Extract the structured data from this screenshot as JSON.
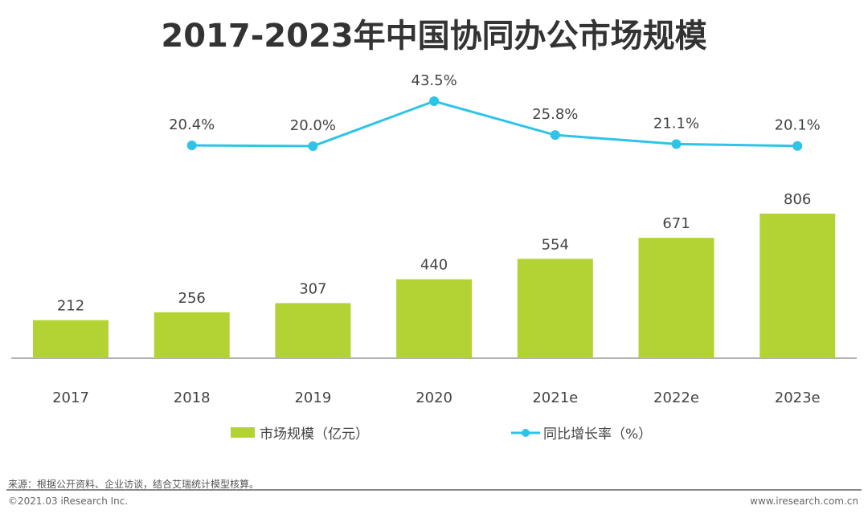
{
  "chart_data": {
    "title": "2017-2023年中国协同办公市场规模",
    "type": "bar+line",
    "categories": [
      "2017",
      "2018",
      "2019",
      "2020",
      "2021e",
      "2022e",
      "2023e"
    ],
    "series": [
      {
        "name": "市场规模（亿元）",
        "type": "bar",
        "color": "#b3d334",
        "values": [
          212,
          256,
          307,
          440,
          554,
          671,
          806
        ]
      },
      {
        "name": "同比增长率（%）",
        "type": "line",
        "color": "#2ec4e8",
        "values": [
          null,
          20.4,
          20.0,
          43.5,
          25.8,
          21.1,
          20.1
        ],
        "labels": [
          "",
          "20.4%",
          "20.0%",
          "43.5%",
          "25.8%",
          "21.1%",
          "20.1%"
        ]
      }
    ],
    "legend": "bottom"
  },
  "footer": {
    "source": "来源：根据公开资料、企业访谈，结合艾瑞统计模型核算。",
    "copyright": "©2021.03 iResearch Inc.",
    "website": "www.iresearch.com.cn"
  }
}
